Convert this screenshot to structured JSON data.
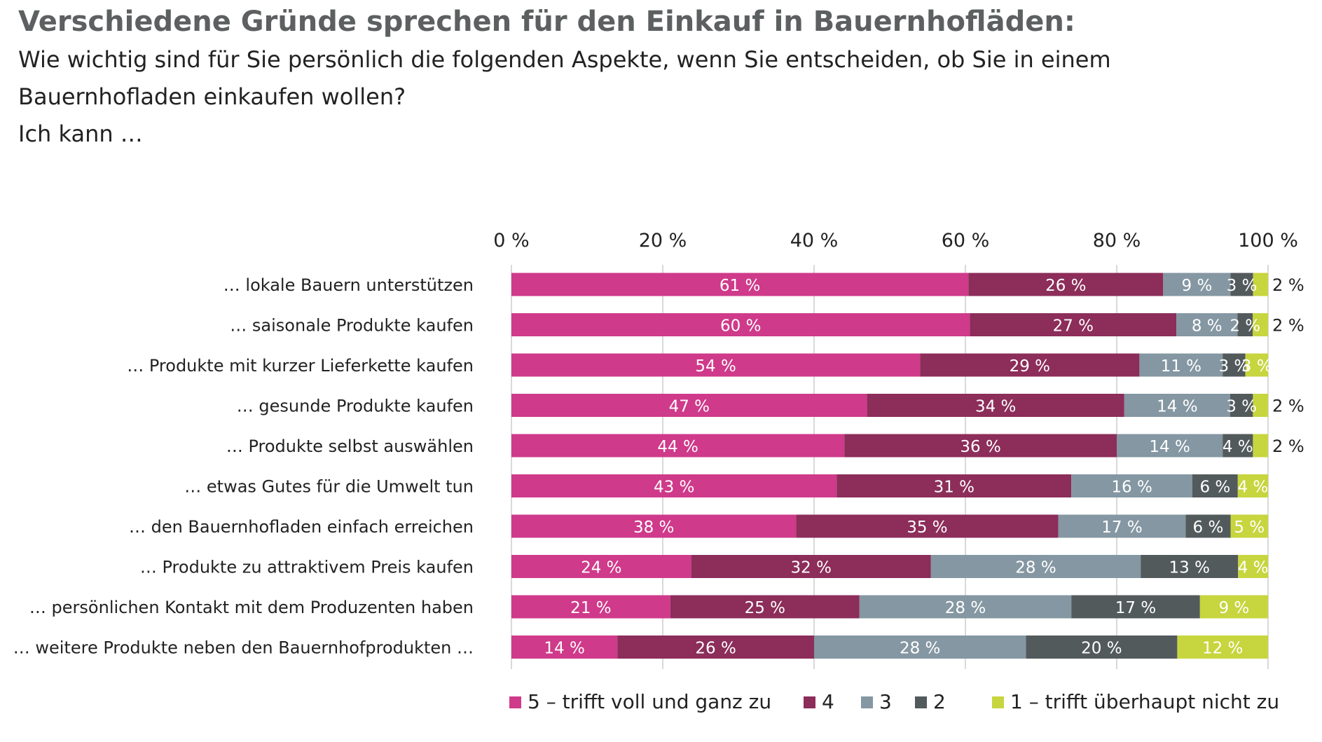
{
  "title": "Verschiedene Gründe sprechen für den Einkauf in Bauernhofläden:",
  "subtitle_lines": [
    "Wie wichtig sind für Sie persönlich die folgenden Aspekte, wenn Sie entscheiden, ob Sie in einem",
    "Bauernhofladen einkaufen wollen?",
    "Ich kann …"
  ],
  "chart_data": {
    "type": "bar",
    "orientation": "horizontal",
    "stacked": true,
    "normalized": true,
    "categories": [
      "… lokale Bauern unterstützen",
      "… saisonale Produkte kaufen",
      "… Produkte mit kurzer Lieferkette kaufen",
      "… gesunde Produkte kaufen",
      "… Produkte selbst auswählen",
      "… etwas Gutes für die Umwelt tun",
      "… den Bauernhofladen einfach erreichen",
      "… Produkte zu attraktivem Preis kaufen",
      "… persönlichen Kontakt mit dem Produzenten haben",
      "… weitere Produkte neben den Bauernhofprodukten …"
    ],
    "series": [
      {
        "name": "5 – trifft voll und ganz zu",
        "color": "#cf3a8a",
        "values": [
          61,
          60,
          54,
          47,
          44,
          43,
          38,
          24,
          21,
          14
        ]
      },
      {
        "name": "4",
        "color": "#8c2d5a",
        "values": [
          26,
          27,
          29,
          34,
          36,
          31,
          35,
          32,
          25,
          26
        ]
      },
      {
        "name": "3",
        "color": "#8497a2",
        "values": [
          9,
          8,
          11,
          14,
          14,
          16,
          17,
          28,
          28,
          28
        ]
      },
      {
        "name": "2",
        "color": "#535a5c",
        "values": [
          3,
          2,
          3,
          3,
          4,
          6,
          6,
          13,
          17,
          20
        ]
      },
      {
        "name": "1 – trifft überhaupt nicht zu",
        "color": "#c7d53e",
        "values": [
          2,
          2,
          3,
          2,
          2,
          4,
          5,
          4,
          9,
          12
        ]
      }
    ],
    "value_labels": [
      [
        "61 %",
        "26 %",
        "9 %",
        "3 %",
        "2 %"
      ],
      [
        "60 %",
        "27 %",
        "8 %",
        "2 %",
        "2 %"
      ],
      [
        "54 %",
        "29 %",
        "11 %",
        "3 %",
        "3 %"
      ],
      [
        "47 %",
        "34 %",
        "14 %",
        "3 %",
        "2 %"
      ],
      [
        "44 %",
        "36 %",
        "14 %",
        "4 %",
        "2 %"
      ],
      [
        "43 %",
        "31 %",
        "16 %",
        "6 %",
        "4 %"
      ],
      [
        "38 %",
        "35 %",
        "17 %",
        "6 %",
        "5 %"
      ],
      [
        "24 %",
        "32 %",
        "28 %",
        "13 %",
        "4 %"
      ],
      [
        "21 %",
        "25 %",
        "28 %",
        "17 %",
        "9 %"
      ],
      [
        "14 %",
        "26 %",
        "28 %",
        "20 %",
        "12 %"
      ]
    ],
    "xlim": [
      0,
      100
    ],
    "xticks": [
      0,
      20,
      40,
      60,
      80,
      100
    ],
    "xtick_labels": [
      "0 %",
      "20 %",
      "40 %",
      "60 %",
      "80 %",
      "100 %"
    ],
    "grid": true,
    "legend_position": "bottom"
  }
}
